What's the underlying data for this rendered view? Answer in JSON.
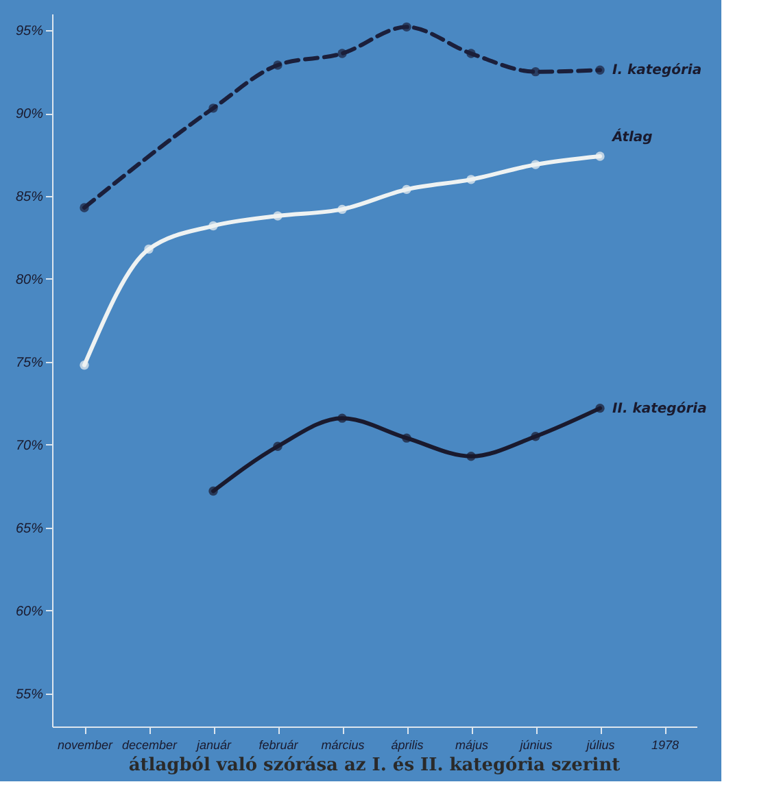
{
  "chart_data": {
    "type": "line",
    "categories": [
      "november",
      "december",
      "január",
      "február",
      "március",
      "április",
      "május",
      "június",
      "július",
      "1978"
    ],
    "series": [
      {
        "name": "I. kategória",
        "color": "#1b1f3b",
        "line_style": "dashed",
        "values": [
          84.3,
          null,
          90.3,
          92.9,
          93.6,
          95.2,
          93.6,
          92.5,
          92.6,
          null
        ]
      },
      {
        "name": "Átlag",
        "color": "#eef2f2",
        "line_style": "solid",
        "values": [
          74.8,
          81.8,
          83.2,
          83.8,
          84.2,
          85.4,
          86.0,
          86.9,
          87.4,
          null
        ]
      },
      {
        "name": "II. kategória",
        "color": "#1a1a2e",
        "line_style": "solid",
        "values": [
          null,
          null,
          67.2,
          69.9,
          71.6,
          70.4,
          69.3,
          70.5,
          72.2,
          null
        ]
      }
    ],
    "ylim": [
      53,
      96
    ],
    "yticks": [
      {
        "value": 55,
        "label": "55%"
      },
      {
        "value": 60,
        "label": "60%"
      },
      {
        "value": 65,
        "label": "65%"
      },
      {
        "value": 70,
        "label": "70%"
      },
      {
        "value": 75,
        "label": "75%"
      },
      {
        "value": 80,
        "label": "80%"
      },
      {
        "value": 85,
        "label": "85%"
      },
      {
        "value": 90,
        "label": "90%"
      },
      {
        "value": 95,
        "label": "95%"
      }
    ],
    "marker": "circle",
    "legend": false,
    "grid": false,
    "annotations": [
      "átlagból való szórása az I. és II. kategória szerint"
    ]
  }
}
